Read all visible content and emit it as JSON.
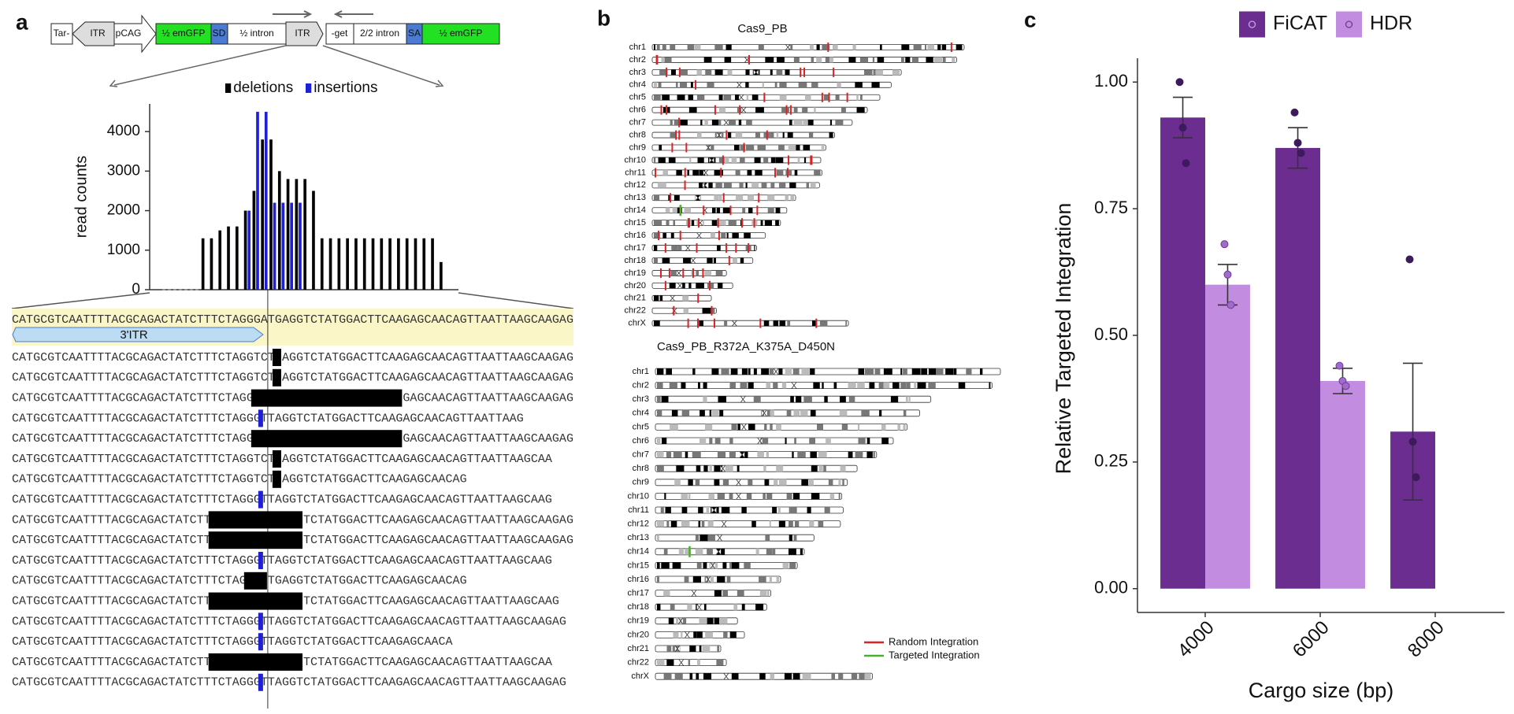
{
  "panel_labels": [
    "a",
    "b",
    "c"
  ],
  "construct": {
    "left": [
      "Tar-",
      "ITR",
      "pCAG",
      "½ emGFP",
      "SD",
      "½ intron",
      "ITR"
    ],
    "right": [
      "-get",
      "2/2 intron",
      "SA",
      "½ emGFP"
    ]
  },
  "chart_data": [
    {
      "type": "bar",
      "ylabel": "read counts",
      "categories": [
        null,
        null,
        null,
        null,
        null,
        null,
        null,
        null,
        null,
        null,
        null,
        null,
        null,
        null,
        null,
        null,
        null,
        null,
        null,
        null,
        null,
        null,
        null,
        null,
        null,
        null,
        null,
        null,
        null
      ],
      "series": [
        {
          "name": "deletions",
          "color": "#000000",
          "values": [
            1300,
            1300,
            1500,
            1600,
            1600,
            2000,
            2500,
            3800,
            3800,
            3000,
            2800,
            2800,
            2800,
            2500,
            1300,
            1300,
            1300,
            1300,
            1300,
            1300,
            1300,
            1300,
            1300,
            1300,
            1300,
            1300,
            1300,
            1300,
            700
          ]
        },
        {
          "name": "insertions",
          "color": "#1f1fd6",
          "values": [
            null,
            null,
            null,
            null,
            null,
            2000,
            4500,
            4500,
            2200,
            2200,
            2200,
            2200,
            null,
            null,
            null,
            null,
            null,
            null,
            null,
            null,
            null,
            null,
            null,
            null,
            null,
            null,
            null,
            null,
            null
          ]
        }
      ],
      "ylim": [
        0,
        4700
      ],
      "yticks": [
        0,
        1000,
        2000,
        3000,
        4000
      ],
      "legend": "top"
    },
    {
      "type": "bar",
      "xlabel": "Cargo size (bp)",
      "ylabel": "Relative Targeted Integration",
      "categories": [
        "4000",
        "6000",
        "8000"
      ],
      "series": [
        {
          "name": "FiCAT",
          "color": "#6b2d90",
          "values": [
            0.93,
            0.87,
            0.31
          ],
          "errors": [
            0.04,
            0.04,
            0.135
          ],
          "points": [
            [
              1.0,
              0.91,
              0.84
            ],
            [
              0.94,
              0.88,
              0.86
            ],
            [
              0.65,
              0.29,
              0.22
            ]
          ]
        },
        {
          "name": "HDR",
          "color": "#c28ce0",
          "values": [
            0.6,
            0.41,
            null
          ],
          "errors": [
            0.04,
            0.025,
            null
          ],
          "points": [
            [
              0.68,
              0.62,
              0.56
            ],
            [
              0.44,
              0.41,
              0.4
            ],
            null
          ]
        }
      ],
      "ylim": [
        -0.047,
        1.047
      ],
      "yticks": [
        {
          "value": 0,
          "label": "0.00"
        },
        {
          "value": 0.25,
          "label": "0.25"
        },
        {
          "value": 0.5,
          "label": "0.50"
        },
        {
          "value": 0.75,
          "label": "0.75"
        },
        {
          "value": 1,
          "label": "1.00"
        }
      ],
      "legend": "top"
    }
  ],
  "alignment": {
    "reference": "CATGCGTCAATTTTACGCAGACTATCTTTCTAGGGATGAGGTCTATGGACTTCAAGAGCAACAGTTAATTAAGCAAGAG",
    "feature": "3'ITR",
    "reads": [
      [
        "CATGCGTCAATTTTACGCAGACTATCTTTCTAGGTCT",
        "AGGTCTATGGACTTCAAGAGCAACAGTTAATTAAGCAAGAG"
      ],
      [
        "CATGCGTCAATTTTACGCAGACTATCTTTCTAGGTCT",
        "AGGTCTATGGACTTCAAGAGCAACAGTTAATTAAGCAAGAG"
      ],
      [
        "CATGCGTCAATTTTACGCAGACTATCTTTCTAGG",
        "GAGCAACAGTTAATTAAGCAAGAG"
      ],
      [
        "CATGCGTCAATTTTACGCAGACTATCTTTCTAGGG",
        "TTAGGTCTATGGACTTCAAGAGCAACAGTTAATTAAG"
      ],
      [
        "CATGCGTCAATTTTACGCAGACTATCTTTCTAGG",
        "GAGCAACAGTTAATTAAGCAAGAG"
      ],
      [
        "CATGCGTCAATTTTACGCAGACTATCTTTCTAGGTCT",
        "AGGTCTATGGACTTCAAGAGCAACAGTTAATTAAGCAA"
      ],
      [
        "CATGCGTCAATTTTACGCAGACTATCTTTCTAGGTCT",
        "AGGTCTATGGACTTCAAGAGCAACAG"
      ],
      [
        "CATGCGTCAATTTTACGCAGACTATCTTTCTAGGG",
        "TTAGGTCTATGGACTTCAAGAGCAACAGTTAATTAAGCAAG"
      ],
      [
        "CATGCGTCAATTTTACGCAGACTATCTT",
        "TCTATGGACTTCAAGAGCAACAGTTAATTAAGCAAGAG"
      ],
      [
        "CATGCGTCAATTTTACGCAGACTATCTT",
        "TCTATGGACTTCAAGAGCAACAGTTAATTAAGCAAGAG"
      ],
      [
        "CATGCGTCAATTTTACGCAGACTATCTTTCTAGGG",
        "TTAGGTCTATGGACTTCAAGAGCAACAGTTAATTAAGCAAG"
      ],
      [
        "CATGCGTCAATTTTACGCAGACTATCTTTCTAG",
        "TGAGGTCTATGGACTTCAAGAGCAACAG"
      ],
      [
        "CATGCGTCAATTTTACGCAGACTATCTT",
        "TCTATGGACTTCAAGAGCAACAGTTAATTAAGCAAG"
      ],
      [
        "CATGCGTCAATTTTACGCAGACTATCTTTCTAGGG",
        "TTAGGTCTATGGACTTCAAGAGCAACAGTTAATTAAGCAAGAG"
      ],
      [
        "CATGCGTCAATTTTACGCAGACTATCTTTCTAGGG",
        "TTAGGTCTATGGACTTCAAGAGCAACA"
      ],
      [
        "CATGCGTCAATTTTACGCAGACTATCTT",
        "TCTATGGACTTCAAGAGCAACAGTTAATTAAGCAA"
      ],
      [
        "CATGCGTCAATTTTACGCAGACTATCTTTCTAGGG",
        "TTAGGTCTATGGACTTCAAGAGCAACAGTTAATTAAGCAAGAG"
      ]
    ]
  },
  "ideograms": {
    "titles": [
      "Cas9_PB",
      "Cas9_PB_R372A_K375A_D450N"
    ],
    "chromosomes": [
      "chr1",
      "chr2",
      "chr3",
      "chr4",
      "chr5",
      "chr6",
      "chr7",
      "chr8",
      "chr9",
      "chr10",
      "chr11",
      "chr12",
      "chr13",
      "chr14",
      "chr15",
      "chr16",
      "chr17",
      "chr18",
      "chr19",
      "chr20",
      "chr21",
      "chr22",
      "chrX"
    ],
    "legend": [
      "Random Integration",
      "Targeted Integration"
    ]
  }
}
